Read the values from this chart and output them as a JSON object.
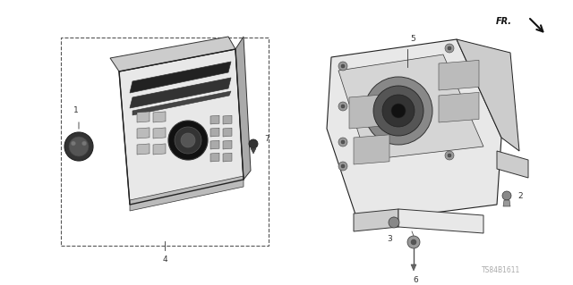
{
  "bg_color": "#ffffff",
  "fig_width": 6.4,
  "fig_height": 3.19,
  "dpi": 100,
  "text_color": "#333333",
  "line_color": "#333333",
  "fill_light": "#e8e8e8",
  "fill_mid": "#cccccc",
  "fill_dark": "#aaaaaa",
  "fill_darker": "#888888",
  "fill_black": "#111111",
  "code_text": "TS84B1611",
  "fr_text": "FR."
}
